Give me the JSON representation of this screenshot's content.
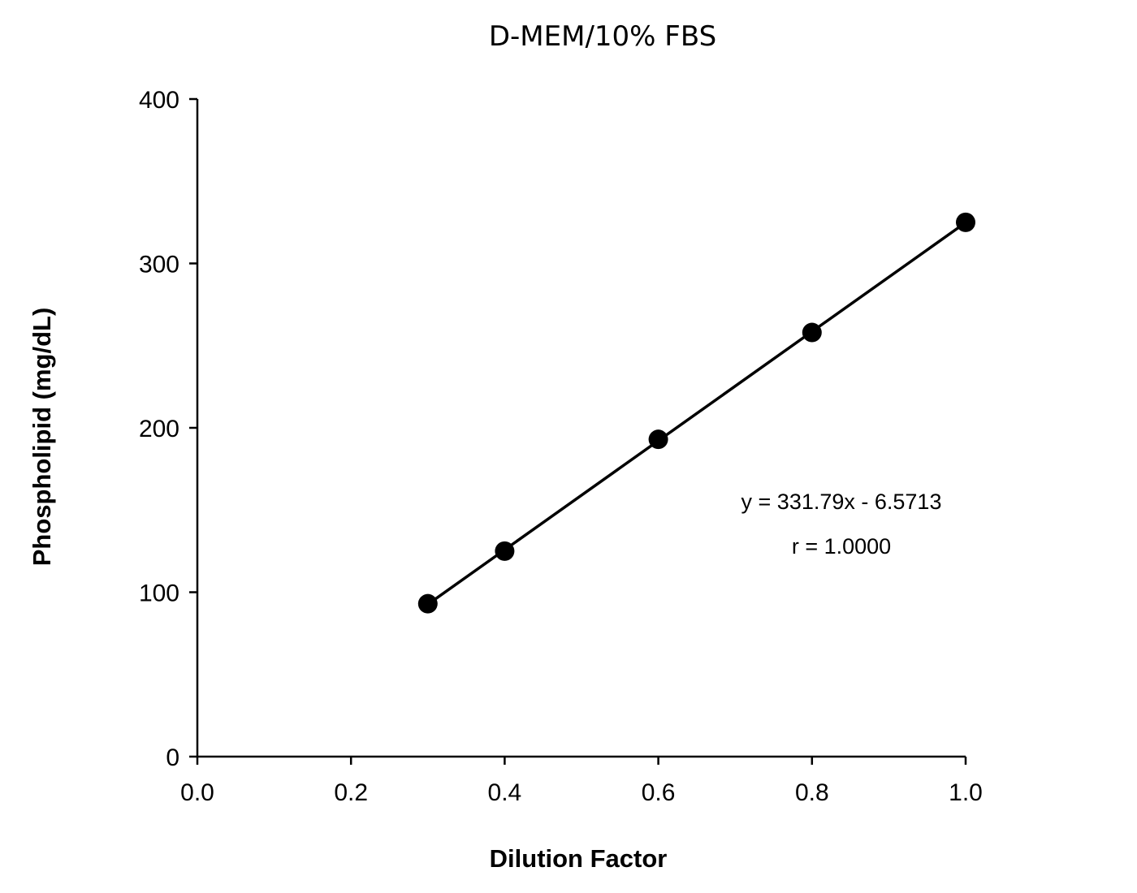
{
  "chart_data": {
    "type": "scatter",
    "title": "D-MEM/10% FBS",
    "xlabel": "Dilution Factor",
    "ylabel": "Phospholipid (mg/dL)",
    "xlim": [
      0.0,
      1.0
    ],
    "ylim": [
      0,
      400
    ],
    "xticks": [
      "0.0",
      "0.2",
      "0.4",
      "0.6",
      "0.8",
      "1.0"
    ],
    "yticks": [
      "0",
      "100",
      "200",
      "300",
      "400"
    ],
    "grid": false,
    "series": [
      {
        "x": [
          0.3,
          0.4,
          0.6,
          0.8,
          1.0
        ],
        "y": [
          93,
          125,
          193,
          258,
          325
        ],
        "color": "#000000",
        "marker": "circle",
        "trendline": "linear"
      }
    ],
    "annotations": [
      "y = 331.79x - 6.5713",
      "r = 1.0000"
    ]
  }
}
